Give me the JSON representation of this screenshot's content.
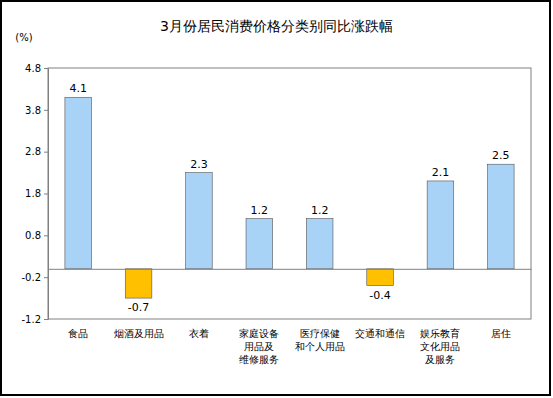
{
  "chart_data": {
    "type": "bar",
    "title": "3月份居民消费价格分类别同比涨跌幅",
    "y_label": "(%)",
    "categories": [
      "食品",
      "烟酒及用品",
      "衣着",
      "家庭设备\n用品及\n维修服务",
      "医疗保健\n和个人用品",
      "交通和通信",
      "娱乐教育\n文化用品\n及服务",
      "居住"
    ],
    "values": [
      4.1,
      -0.7,
      2.3,
      1.2,
      1.2,
      -0.4,
      2.1,
      2.5
    ],
    "colors": [
      "#a9d2f7",
      "#ffc000",
      "#a9d2f7",
      "#a9d2f7",
      "#a9d2f7",
      "#ffc000",
      "#a9d2f7",
      "#a9d2f7"
    ],
    "ylim": [
      -1.2,
      4.8
    ],
    "yticks": [
      -1.2,
      -0.2,
      0.8,
      1.8,
      2.8,
      3.8,
      4.8
    ],
    "grid": false,
    "data_labels": true
  }
}
